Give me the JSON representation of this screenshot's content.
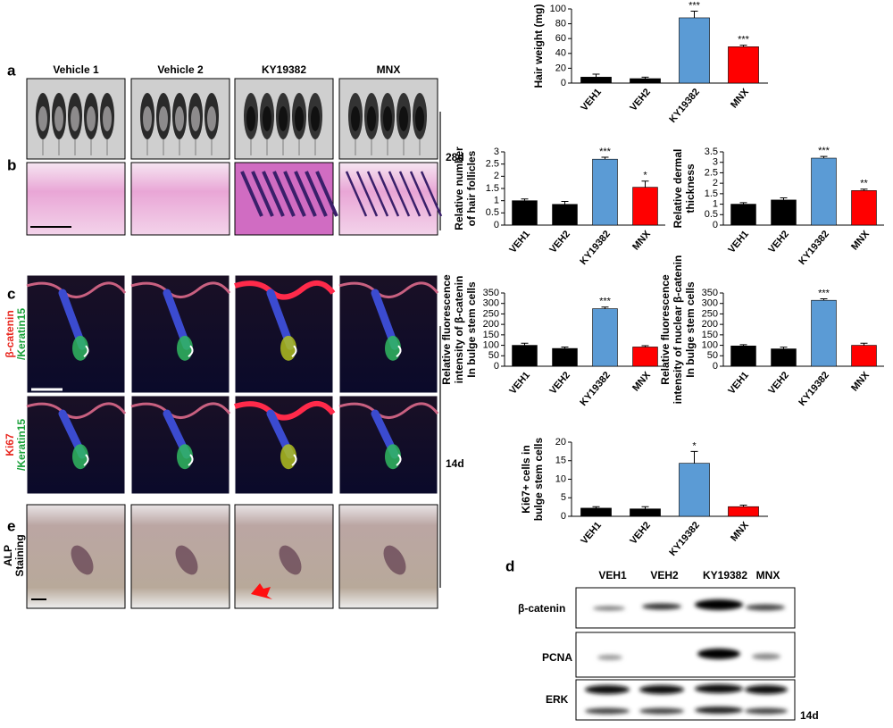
{
  "panel_labels": [
    "a",
    "b",
    "c",
    "d",
    "e"
  ],
  "columns": [
    "Vehicle 1",
    "Vehicle 2",
    "KY19382",
    "MNX"
  ],
  "time_labels": [
    "28d",
    "14d",
    "14d"
  ],
  "row_labels": {
    "c_top": [
      "β-catenin",
      "/Keratin15"
    ],
    "c_bottom": [
      "Ki67",
      "/Keratin15"
    ],
    "e": [
      "ALP",
      "Staining"
    ]
  },
  "blot": {
    "lanes": [
      "VEH1",
      "VEH2",
      "KY19382",
      "MNX"
    ],
    "proteins": [
      "β-catenin",
      "PCNA",
      "ERK"
    ]
  },
  "chart_data": [
    {
      "type": "bar",
      "ylabel": [
        "Hair weight (mg)"
      ],
      "categories": [
        "VEH1",
        "VEH2",
        "KY19382",
        "MNX"
      ],
      "values": [
        8,
        6,
        88,
        49
      ],
      "errors": [
        4,
        2,
        9,
        2
      ],
      "annotations": [
        null,
        null,
        "***",
        "***"
      ],
      "colors": [
        "#000000",
        "#000000",
        "#5b9bd5",
        "#ff0000"
      ],
      "ylim": [
        0,
        100
      ],
      "yticks": [
        0,
        20,
        40,
        60,
        80,
        100
      ]
    },
    {
      "type": "bar",
      "ylabel": [
        "Relative number",
        "of hair follicles"
      ],
      "categories": [
        "VEH1",
        "VEH2",
        "KY19382",
        "MNX"
      ],
      "values": [
        1.0,
        0.85,
        2.7,
        1.55
      ],
      "errors": [
        0.07,
        0.12,
        0.08,
        0.25
      ],
      "annotations": [
        null,
        null,
        "***",
        "*"
      ],
      "colors": [
        "#000000",
        "#000000",
        "#5b9bd5",
        "#ff0000"
      ],
      "ylim": [
        0,
        3
      ],
      "yticks": [
        0,
        0.5,
        1,
        1.5,
        2,
        2.5,
        3
      ]
    },
    {
      "type": "bar",
      "ylabel": [
        "Relative dermal",
        "thickness"
      ],
      "categories": [
        "VEH1",
        "VEH2",
        "KY19382",
        "MNX"
      ],
      "values": [
        1.0,
        1.2,
        3.2,
        1.65
      ],
      "errors": [
        0.07,
        0.1,
        0.08,
        0.07
      ],
      "annotations": [
        null,
        null,
        "***",
        "**"
      ],
      "colors": [
        "#000000",
        "#000000",
        "#5b9bd5",
        "#ff0000"
      ],
      "ylim": [
        0,
        3.5
      ],
      "yticks": [
        0,
        0.5,
        1,
        1.5,
        2,
        2.5,
        3,
        3.5
      ]
    },
    {
      "type": "bar",
      "ylabel": [
        "Relative fluorescence",
        "intensity of β-catenin",
        "In bulge stem cells"
      ],
      "categories": [
        "VEH1",
        "VEH2",
        "KY19382",
        "MNX"
      ],
      "values": [
        100,
        85,
        275,
        92
      ],
      "errors": [
        10,
        7,
        8,
        6
      ],
      "annotations": [
        null,
        null,
        "***",
        null
      ],
      "colors": [
        "#000000",
        "#000000",
        "#5b9bd5",
        "#ff0000"
      ],
      "ylim": [
        0,
        350
      ],
      "yticks": [
        0,
        50,
        100,
        150,
        200,
        250,
        300,
        350
      ]
    },
    {
      "type": "bar",
      "ylabel": [
        "Relative fluorescence",
        "intensity of nuclear β-catenin",
        "In bulge stem cells"
      ],
      "categories": [
        "VEH1",
        "VEH2",
        "KY19382",
        "MNX"
      ],
      "values": [
        97,
        83,
        315,
        100
      ],
      "errors": [
        6,
        8,
        7,
        10
      ],
      "annotations": [
        null,
        null,
        "***",
        null
      ],
      "colors": [
        "#000000",
        "#000000",
        "#5b9bd5",
        "#ff0000"
      ],
      "ylim": [
        0,
        350
      ],
      "yticks": [
        0,
        50,
        100,
        150,
        200,
        250,
        300,
        350
      ]
    },
    {
      "type": "bar",
      "ylabel": [
        "Ki67+ cells in",
        "bulge stem cells"
      ],
      "categories": [
        "VEH1",
        "VEH2",
        "KY19382",
        "MNX"
      ],
      "values": [
        2.2,
        2.0,
        14.3,
        2.6
      ],
      "errors": [
        0.4,
        0.6,
        3.2,
        0.4
      ],
      "annotations": [
        null,
        null,
        "*",
        null
      ],
      "colors": [
        "#000000",
        "#000000",
        "#5b9bd5",
        "#ff0000"
      ],
      "ylim": [
        0,
        20
      ],
      "yticks": [
        0,
        5,
        10,
        15,
        20
      ]
    }
  ]
}
